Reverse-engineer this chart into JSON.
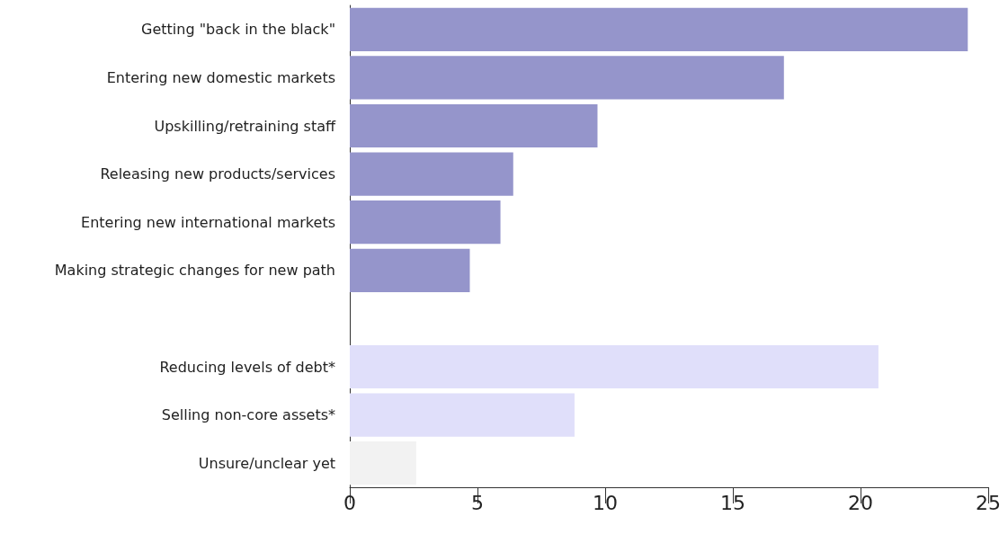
{
  "chart_data": {
    "type": "bar",
    "orientation": "horizontal",
    "categories": [
      "Getting \"back in the black\"",
      "Entering new domestic markets",
      "Upskilling/retraining staff",
      "Releasing new products/services",
      "Entering new international markets",
      "Making strategic changes for new path",
      null,
      "Reducing levels of debt*",
      "Selling non-core assets*",
      "Unsure/unclear yet"
    ],
    "values": [
      24.2,
      17.0,
      9.7,
      6.4,
      5.9,
      4.7,
      null,
      20.7,
      8.8,
      2.6
    ],
    "colors": [
      "#9595cb",
      "#9595cb",
      "#9595cb",
      "#9595cb",
      "#9595cb",
      "#9595cb",
      "#9595cb",
      "#e0dffa",
      "#e0dffa",
      "#f2f2f2"
    ],
    "xlim": [
      0,
      25
    ],
    "xticks": [
      0,
      5,
      10,
      15,
      20,
      25
    ],
    "grid": false
  }
}
